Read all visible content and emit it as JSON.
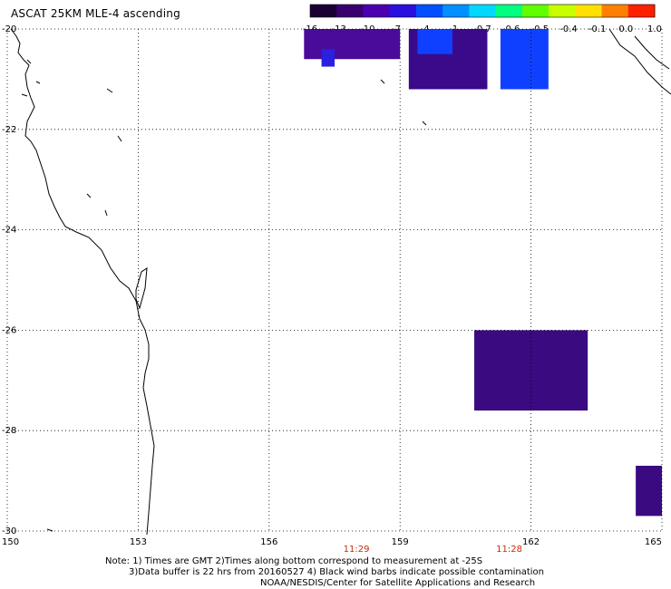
{
  "title": "ASCAT 25KM MLE-4 ascending",
  "colorbar": {
    "labels": [
      "-16",
      "-13",
      "-10",
      "-7",
      "-4",
      "-1",
      "-0.7",
      "-0.6",
      "-0.5",
      "-0.4",
      "-0.1",
      "0.0",
      "1.0"
    ],
    "colors": [
      "#1a0033",
      "#3a0070",
      "#4a00b0",
      "#2a10e0",
      "#0050ff",
      "#0090ff",
      "#00d8ff",
      "#00ff80",
      "#60ff00",
      "#c8ff00",
      "#ffe000",
      "#ff8000",
      "#ff2000"
    ]
  },
  "axes": {
    "x_labels": [
      "150",
      "153",
      "156",
      "159",
      "162",
      "165"
    ],
    "y_labels": [
      "-20",
      "-22",
      "-24",
      "-26",
      "-28",
      "-30"
    ],
    "lon_range": [
      150,
      165
    ],
    "lat_range": [
      -30,
      -20
    ]
  },
  "times": [
    {
      "label": "11:29",
      "lon": 158.0
    },
    {
      "label": "11:28",
      "lon": 161.5
    }
  ],
  "notes": [
    "Note: 1) Times are GMT 2)Times along bottom correspond to measurement at -25S",
    "3)Data buffer is 22 hrs from 20160527 4) Black wind barbs indicate possible contamination",
    "NOAA/NESDIS/Center for Satellite Applications and Research"
  ],
  "swaths": [
    {
      "name": "north-west-swath",
      "color": "#4a0a9a",
      "lon": [
        156.8,
        159.0
      ],
      "lat": [
        -20.6,
        -20.0
      ]
    },
    {
      "name": "north-west-swath-blue",
      "color": "#2a20e0",
      "lon": [
        157.2,
        157.5
      ],
      "lat": [
        -20.75,
        -20.4
      ]
    },
    {
      "name": "north-middle-swath",
      "color": "#3a0a8a",
      "lon": [
        159.2,
        161.0
      ],
      "lat": [
        -21.2,
        -20.0
      ]
    },
    {
      "name": "north-middle-swath-blue",
      "color": "#1040ff",
      "lon": [
        159.4,
        160.2
      ],
      "lat": [
        -20.5,
        -20.0
      ]
    },
    {
      "name": "north-east-swath-blue",
      "color": "#1040ff",
      "lon": [
        161.3,
        162.4
      ],
      "lat": [
        -21.2,
        -20.0
      ]
    },
    {
      "name": "south-swath",
      "color": "#3a0a80",
      "lon": [
        160.7,
        163.3
      ],
      "lat": [
        -27.6,
        -26.0
      ]
    },
    {
      "name": "far-south-east-swath",
      "color": "#3a0a80",
      "lon": [
        164.4,
        165.0
      ],
      "lat": [
        -29.7,
        -28.7
      ]
    }
  ]
}
